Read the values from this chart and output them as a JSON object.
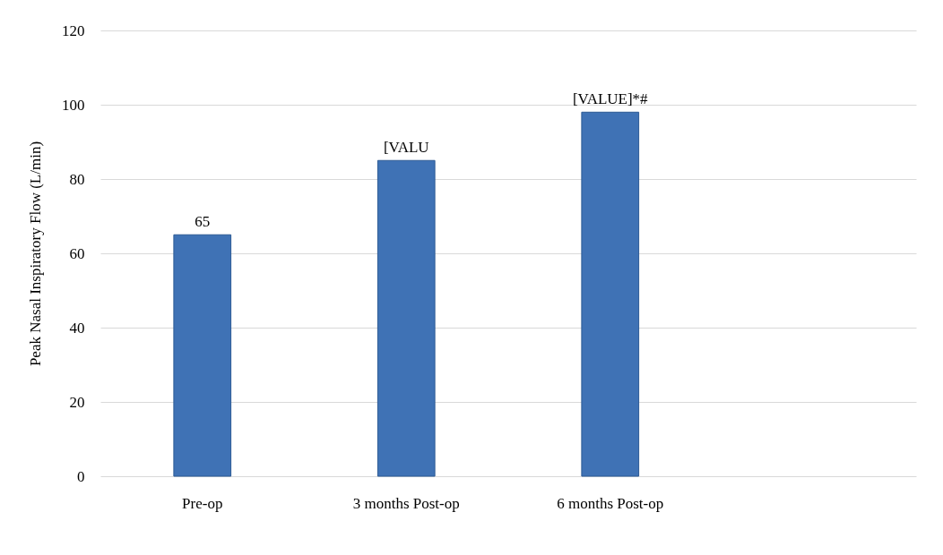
{
  "chart_data": {
    "type": "bar",
    "ylabel": "Peak Nasal Inspiratory Flow (L/min)",
    "categories": [
      "Pre-op",
      "3 months Post-op",
      "6 months Post-op",
      null
    ],
    "values": [
      65,
      85,
      98,
      null
    ],
    "value_labels": [
      "65",
      "[VALU",
      "[VALUE]*#",
      null
    ],
    "color": "#3f72b5",
    "ylim": [
      0,
      120
    ],
    "yticks": [
      0,
      20,
      40,
      60,
      80,
      100,
      120
    ],
    "grid": "y"
  }
}
